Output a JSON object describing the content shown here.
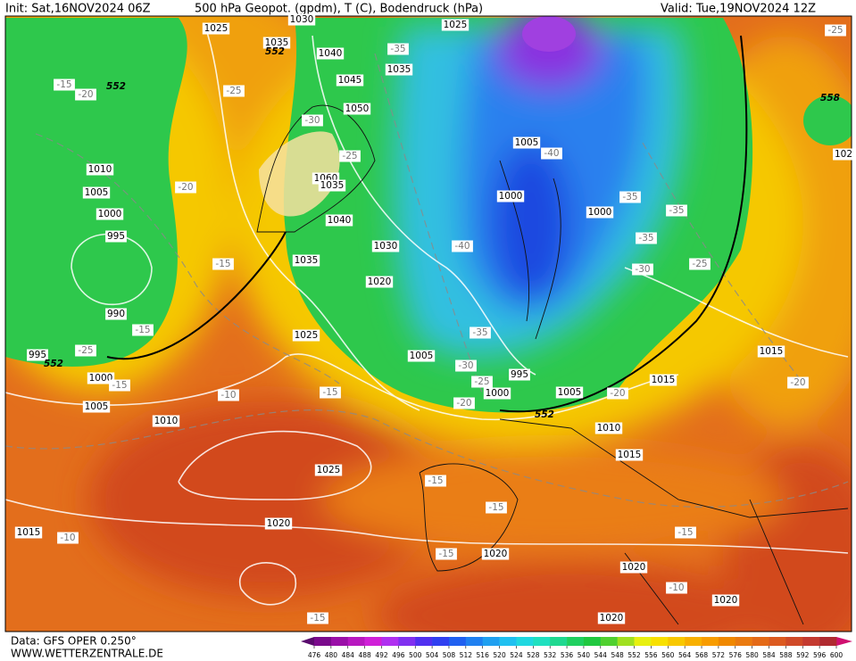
{
  "header": {
    "init": "Init: Sat,16NOV2024 06Z",
    "title": "500 hPa Geopot. (gpdm), T (C), Bodendruck (hPa)",
    "valid": "Valid: Tue,19NOV2024 12Z"
  },
  "footer": {
    "data": "Data: GFS OPER 0.250°",
    "site": "WWW.WETTERZENTRALE.DE"
  },
  "isobar_labels": [
    "1030",
    "1025",
    "1025",
    "1035",
    "1040",
    "1035",
    "1045",
    "1050",
    "1005",
    "1060",
    "1035",
    "1010",
    "1005",
    "1000",
    "995",
    "1000",
    "1000",
    "1040",
    "1030",
    "1035",
    "1020",
    "990",
    "1025",
    "995",
    "1005",
    "995",
    "1000",
    "1000",
    "1005",
    "1015",
    "1015",
    "1005",
    "1010",
    "1010",
    "1015",
    "1025",
    "1015",
    "1020",
    "1020",
    "1020",
    "1020",
    "1020",
    "102"
  ],
  "geopotential_labels": [
    "552",
    "552",
    "552",
    "558",
    "552"
  ],
  "temperature_labels": [
    "-25",
    "-35",
    "-15",
    "-20",
    "-25",
    "-30",
    "-25",
    "-40",
    "-20",
    "-35",
    "-35",
    "-15",
    "-40",
    "-35",
    "-30",
    "-25",
    "-15",
    "-25",
    "-35",
    "-30",
    "-25",
    "-20",
    "-15",
    "-10",
    "-15",
    "-20",
    "-20",
    "-15",
    "-15",
    "-10",
    "-15",
    "-15",
    "-10",
    "-15"
  ],
  "colorbar": {
    "values": [
      476,
      480,
      484,
      488,
      492,
      496,
      500,
      504,
      508,
      512,
      516,
      520,
      524,
      528,
      532,
      536,
      540,
      544,
      548,
      552,
      556,
      560,
      564,
      568,
      572,
      576,
      580,
      584,
      588,
      592,
      596,
      600
    ],
    "colors": [
      "#7a0a8c",
      "#9a10a8",
      "#b818c0",
      "#d020d8",
      "#b030f0",
      "#8030f0",
      "#5030f0",
      "#3040f0",
      "#2060f0",
      "#2080f0",
      "#20a0f0",
      "#20c0f0",
      "#20d8e0",
      "#20e0c0",
      "#20d890",
      "#20d060",
      "#20c840",
      "#50d030",
      "#a0e020",
      "#e8f010",
      "#f8e000",
      "#f8c800",
      "#f8b000",
      "#f89c00",
      "#f08800",
      "#ea7a10",
      "#e46a18",
      "#dc5a20",
      "#d04a28",
      "#c43a30",
      "#b02a30"
    ]
  }
}
